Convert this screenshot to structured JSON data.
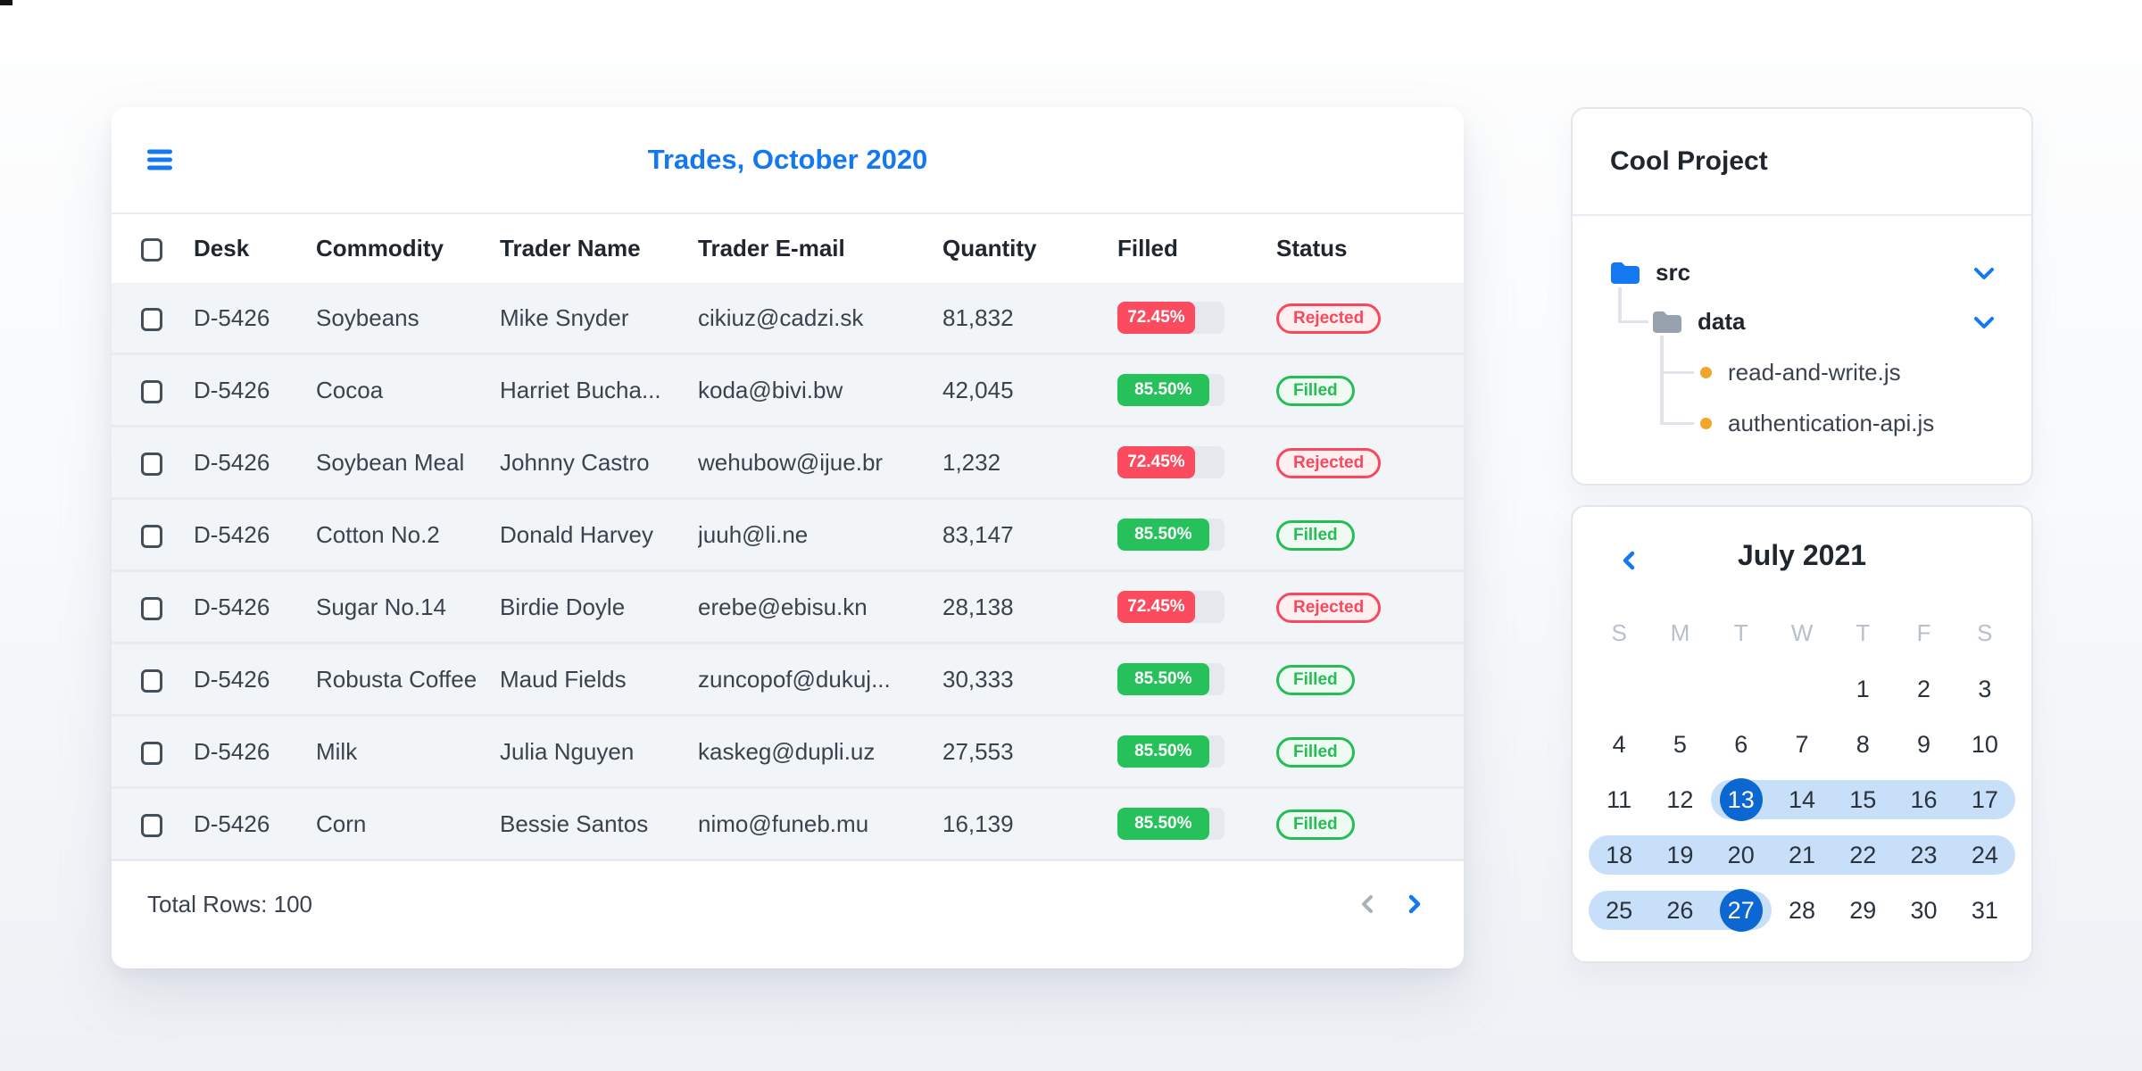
{
  "colors": {
    "accent_blue": "#1478f0",
    "progress_red": "#fa4b5f",
    "progress_green": "#26c15a",
    "badge_red": "#f9485e",
    "badge_green": "#25bd56",
    "calendar_selected_blue": "#0d67d3",
    "calendar_range_blue": "#c7dff9",
    "folder_blue": "#1478f0",
    "folder_gray": "#98a2ae",
    "file_dot_orange": "#efa62b",
    "row_background": "#f2f5f8"
  },
  "icons": {
    "menu": "hamburger-icon",
    "pagination_prev": "chevron-left-icon",
    "pagination_next": "chevron-right-icon",
    "tree_expand": "chevron-down-icon",
    "calendar_prev": "chevron-left-icon",
    "folder": "folder-icon",
    "file": "dot-icon"
  },
  "trades_card": {
    "title": "Trades, October 2020",
    "columns": [
      "Desk",
      "Commodity",
      "Trader Name",
      "Trader E-mail",
      "Quantity",
      "Filled",
      "Status"
    ],
    "rows": [
      {
        "desk": "D-5426",
        "commodity": "Soybeans",
        "trader": "Mike Snyder",
        "email": "cikiuz@cadzi.sk",
        "quantity": "81,832",
        "filled": "72.45%",
        "status": "Rejected"
      },
      {
        "desk": "D-5426",
        "commodity": "Cocoa",
        "trader": "Harriet Bucha...",
        "email": "koda@bivi.bw",
        "quantity": "42,045",
        "filled": "85.50%",
        "status": "Filled"
      },
      {
        "desk": "D-5426",
        "commodity": "Soybean Meal",
        "trader": "Johnny Castro",
        "email": "wehubow@ijue.br",
        "quantity": "1,232",
        "filled": "72.45%",
        "status": "Rejected"
      },
      {
        "desk": "D-5426",
        "commodity": "Cotton No.2",
        "trader": "Donald Harvey",
        "email": "juuh@li.ne",
        "quantity": "83,147",
        "filled": "85.50%",
        "status": "Filled"
      },
      {
        "desk": "D-5426",
        "commodity": "Sugar No.14",
        "trader": "Birdie Doyle",
        "email": "erebe@ebisu.kn",
        "quantity": "28,138",
        "filled": "72.45%",
        "status": "Rejected"
      },
      {
        "desk": "D-5426",
        "commodity": "Robusta Coffee",
        "trader": "Maud Fields",
        "email": "zuncopof@dukuj...",
        "quantity": "30,333",
        "filled": "85.50%",
        "status": "Filled"
      },
      {
        "desk": "D-5426",
        "commodity": "Milk",
        "trader": "Julia Nguyen",
        "email": "kaskeg@dupli.uz",
        "quantity": "27,553",
        "filled": "85.50%",
        "status": "Filled"
      },
      {
        "desk": "D-5426",
        "commodity": "Corn",
        "trader": "Bessie Santos",
        "email": "nimo@funeb.mu",
        "quantity": "16,139",
        "filled": "85.50%",
        "status": "Filled"
      }
    ],
    "footer": {
      "total_label": "Total Rows: 100"
    }
  },
  "project_card": {
    "title": "Cool Project",
    "tree": {
      "root_folder": "src",
      "sub_folder": "data",
      "files": [
        "read-and-write.js",
        "authentication-api.js"
      ]
    }
  },
  "calendar_card": {
    "title": "July 2021",
    "day_headers": [
      "S",
      "M",
      "T",
      "W",
      "T",
      "F",
      "S"
    ],
    "weeks": [
      [
        null,
        null,
        null,
        null,
        1,
        2,
        3
      ],
      [
        4,
        5,
        6,
        7,
        8,
        9,
        10
      ],
      [
        11,
        12,
        13,
        14,
        15,
        16,
        17
      ],
      [
        18,
        19,
        20,
        21,
        22,
        23,
        24
      ],
      [
        25,
        26,
        27,
        28,
        29,
        30,
        31
      ]
    ],
    "range_start": 13,
    "range_end": 27
  }
}
